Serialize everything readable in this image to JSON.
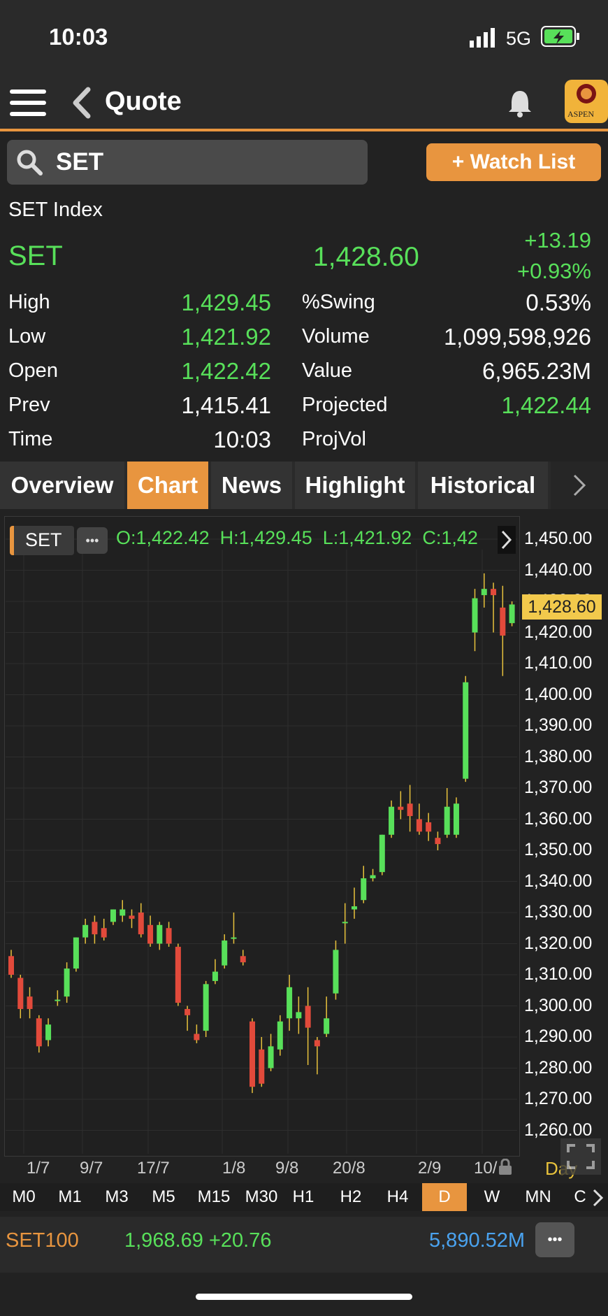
{
  "status": {
    "time": "10:03",
    "network": "5G"
  },
  "header": {
    "title": "Quote",
    "logo_text": "ASPEN"
  },
  "search": {
    "value": "SET",
    "watch_list_label": "+ Watch List"
  },
  "quote": {
    "name": "SET Index",
    "symbol": "SET",
    "last": "1,428.60",
    "change": "+13.19",
    "change_pct": "+0.93%",
    "left": [
      {
        "label": "High",
        "value": "1,429.45"
      },
      {
        "label": "Low",
        "value": "1,421.92"
      },
      {
        "label": "Open",
        "value": "1,422.42"
      },
      {
        "label": "Prev",
        "value": "1,415.41"
      },
      {
        "label": "Time",
        "value": "10:03"
      }
    ],
    "right": [
      {
        "label": "%Swing",
        "value": "0.53%"
      },
      {
        "label": "Volume",
        "value": "1,099,598,926"
      },
      {
        "label": "Value",
        "value": "6,965.23M"
      },
      {
        "label": "Projected",
        "value": "1,422.44"
      },
      {
        "label": "ProjVol",
        "value": ""
      }
    ]
  },
  "tabs": [
    "Overview",
    "Chart",
    "News",
    "Highlight",
    "Historical"
  ],
  "chart_header": {
    "symbol": "SET",
    "more": "•••",
    "ohlc": "O:1,422.42  H:1,429.45  L:1,421.92  C:1,42"
  },
  "chart_data": {
    "type": "candlestick",
    "ylim": [
      1255,
      1455
    ],
    "y_ticks": [
      "1,450.00",
      "1,440.00",
      "1,430.00",
      "1,420.00",
      "1,410.00",
      "1,400.00",
      "1,390.00",
      "1,380.00",
      "1,370.00",
      "1,360.00",
      "1,350.00",
      "1,340.00",
      "1,330.00",
      "1,320.00",
      "1,310.00",
      "1,300.00",
      "1,290.00",
      "1,280.00",
      "1,270.00",
      "1,260.00"
    ],
    "x_ticks": [
      "1/7",
      "9/7",
      "17/7",
      "1/8",
      "9/8",
      "20/8",
      "2/9",
      "10/"
    ],
    "last_price_label": "1,428.60",
    "period_label": "Day",
    "candles": [
      [
        1316,
        1310,
        1318,
        1309
      ],
      [
        1309,
        1299,
        1310,
        1296
      ],
      [
        1303,
        1299,
        1306,
        1296
      ],
      [
        1296,
        1287,
        1297,
        1285
      ],
      [
        1289,
        1294,
        1296,
        1287
      ],
      [
        1302,
        1302,
        1305,
        1300
      ],
      [
        1303,
        1312,
        1314,
        1301
      ],
      [
        1312,
        1322,
        1322,
        1311
      ],
      [
        1322,
        1326,
        1328,
        1320
      ],
      [
        1327,
        1323,
        1329,
        1320
      ],
      [
        1325,
        1322,
        1328,
        1321
      ],
      [
        1327,
        1331,
        1331,
        1326
      ],
      [
        1329,
        1331,
        1334,
        1327
      ],
      [
        1329,
        1328,
        1331,
        1325
      ],
      [
        1330,
        1323,
        1333,
        1322
      ],
      [
        1326,
        1320,
        1329,
        1319
      ],
      [
        1320,
        1326,
        1327,
        1318
      ],
      [
        1325,
        1320,
        1327,
        1319
      ],
      [
        1319,
        1301,
        1320,
        1300
      ],
      [
        1299,
        1297,
        1300,
        1292
      ],
      [
        1291,
        1289,
        1294,
        1288
      ],
      [
        1292,
        1307,
        1308,
        1290
      ],
      [
        1308,
        1311,
        1315,
        1307
      ],
      [
        1313,
        1321,
        1323,
        1312
      ],
      [
        1322,
        1322,
        1330,
        1320
      ],
      [
        1316,
        1314,
        1318,
        1313
      ],
      [
        1295,
        1274,
        1296,
        1272
      ],
      [
        1286,
        1275,
        1290,
        1274
      ],
      [
        1280,
        1287,
        1291,
        1279
      ],
      [
        1286,
        1295,
        1297,
        1284
      ],
      [
        1296,
        1306,
        1310,
        1292
      ],
      [
        1296,
        1298,
        1303,
        1291
      ],
      [
        1300,
        1293,
        1306,
        1281
      ],
      [
        1289,
        1287,
        1290,
        1278
      ],
      [
        1291,
        1296,
        1303,
        1290
      ],
      [
        1304,
        1318,
        1321,
        1302
      ],
      [
        1327,
        1327,
        1333,
        1320
      ],
      [
        1331,
        1332,
        1338,
        1328
      ],
      [
        1334,
        1341,
        1345,
        1333
      ],
      [
        1341,
        1342,
        1344,
        1340
      ],
      [
        1343,
        1355,
        1355,
        1342
      ],
      [
        1355,
        1364,
        1366,
        1354
      ],
      [
        1364,
        1363,
        1369,
        1360
      ],
      [
        1365,
        1361,
        1371,
        1356
      ],
      [
        1360,
        1356,
        1365,
        1355
      ],
      [
        1359,
        1356,
        1362,
        1353
      ],
      [
        1354,
        1352,
        1356,
        1350
      ],
      [
        1355,
        1364,
        1370,
        1354
      ],
      [
        1355,
        1365,
        1367,
        1354
      ],
      [
        1373,
        1404,
        1406,
        1372
      ],
      [
        1420,
        1431,
        1434,
        1414
      ],
      [
        1432,
        1434,
        1439,
        1428
      ],
      [
        1434,
        1432,
        1436,
        1420
      ],
      [
        1428,
        1419,
        1435,
        1406
      ],
      [
        1423,
        1429,
        1430,
        1422
      ]
    ]
  },
  "timeframes": [
    "M0",
    "M1",
    "M3",
    "M5",
    "M15",
    "M30",
    "H1",
    "H2",
    "H4",
    "D",
    "W",
    "MN",
    "C"
  ],
  "ticker": {
    "symbol": "SET100",
    "price": "1,968.69 +20.76",
    "value": "5,890.52M",
    "more": "•••"
  },
  "colors": {
    "accent": "#e8953f",
    "up": "#58e05a",
    "down": "#e24a3b",
    "value_blue": "#4aa3f0"
  }
}
